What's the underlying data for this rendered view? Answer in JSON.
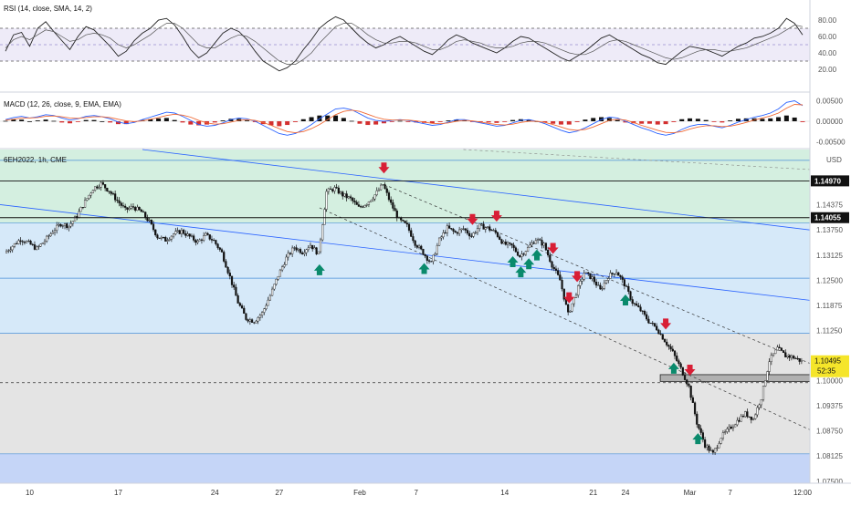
{
  "colors": {
    "green_zone": "#d4efe0",
    "blue_zone": "#d6e9f9",
    "gray_zone": "#e4e4e4",
    "blue_band": "#c5d5f7",
    "rsi_band": "#eeebf8",
    "trend_blue": "#2962ff",
    "arrow_down": "#d81e35",
    "arrow_up": "#0a8a6c",
    "macd_line": "#2962ff",
    "signal_line": "#f06a35",
    "price_tag": "#f5e52a"
  },
  "chart_data": [
    {
      "type": "line",
      "title": "RSI (14, close, SMA, 14, 2)",
      "ylim": [
        0,
        100
      ],
      "yticks": [
        "80.00",
        "60.00",
        "40.00",
        "20.00"
      ],
      "band": [
        30,
        70
      ],
      "midline": 50,
      "series": [
        {
          "name": "RSI",
          "values": [
            42,
            62,
            65,
            48,
            70,
            78,
            66,
            55,
            44,
            60,
            72,
            68,
            58,
            48,
            36,
            42,
            55,
            64,
            70,
            80,
            82,
            74,
            60,
            44,
            34,
            40,
            52,
            64,
            70,
            66,
            56,
            42,
            30,
            24,
            18,
            22,
            30,
            44,
            56,
            70,
            78,
            84,
            80,
            70,
            60,
            52,
            46,
            50,
            56,
            60,
            54,
            48,
            42,
            38,
            46,
            56,
            62,
            58,
            52,
            48,
            44,
            40,
            46,
            54,
            60,
            58,
            52,
            46,
            40,
            34,
            30,
            36,
            42,
            50,
            58,
            62,
            56,
            50,
            44,
            38,
            34,
            28,
            26,
            34,
            42,
            48,
            46,
            44,
            40,
            36,
            42,
            48,
            52,
            58,
            60,
            64,
            70,
            82,
            76,
            62
          ]
        },
        {
          "name": "RSI-based MA",
          "values": [
            46,
            56,
            60,
            56,
            62,
            68,
            66,
            60,
            54,
            56,
            62,
            64,
            62,
            58,
            50,
            46,
            50,
            56,
            62,
            70,
            76,
            76,
            70,
            60,
            50,
            46,
            46,
            52,
            58,
            62,
            60,
            54,
            46,
            38,
            30,
            26,
            26,
            32,
            40,
            52,
            62,
            72,
            76,
            76,
            70,
            62,
            56,
            52,
            52,
            54,
            54,
            52,
            48,
            44,
            44,
            48,
            54,
            56,
            54,
            52,
            48,
            46,
            46,
            48,
            52,
            54,
            54,
            52,
            48,
            44,
            40,
            38,
            38,
            42,
            48,
            54,
            56,
            54,
            50,
            46,
            42,
            38,
            34,
            32,
            34,
            38,
            42,
            44,
            44,
            42,
            42,
            44,
            46,
            50,
            54,
            58,
            62,
            68,
            74,
            72
          ]
        }
      ]
    },
    {
      "type": "line",
      "title": "MACD (12, 26, close, 9, EMA, EMA)",
      "ylim": [
        -0.006,
        0.006
      ],
      "yticks": [
        "0.00500",
        "0.00000",
        "-0.00500"
      ],
      "series": [
        {
          "name": "MACD",
          "values": [
            0.0004,
            0.0009,
            0.0012,
            0.0008,
            0.0011,
            0.0016,
            0.0014,
            0.0008,
            0.0003,
            0.0006,
            0.0012,
            0.0014,
            0.0011,
            0.0006,
            -0.0002,
            -0.0006,
            -0.0003,
            0.0004,
            0.001,
            0.0016,
            0.0022,
            0.002,
            0.0012,
            0.0002,
            -0.0008,
            -0.0012,
            -0.001,
            -0.0004,
            0.0004,
            0.0008,
            0.0006,
            0.0,
            -0.001,
            -0.002,
            -0.003,
            -0.0034,
            -0.003,
            -0.002,
            -0.0008,
            0.0006,
            0.0018,
            0.003,
            0.0032,
            0.0028,
            0.0018,
            0.0008,
            0.0002,
            0.0,
            0.0002,
            0.0004,
            0.0002,
            -0.0002,
            -0.0006,
            -0.001,
            -0.0008,
            -0.0002,
            0.0004,
            0.0004,
            0.0,
            -0.0004,
            -0.0008,
            -0.0012,
            -0.001,
            -0.0004,
            0.0002,
            0.0004,
            0.0,
            -0.0006,
            -0.0014,
            -0.0022,
            -0.0028,
            -0.0024,
            -0.0016,
            -0.0006,
            0.0004,
            0.001,
            0.0008,
            0.0,
            -0.0008,
            -0.0016,
            -0.0022,
            -0.003,
            -0.0034,
            -0.003,
            -0.002,
            -0.0012,
            -0.0008,
            -0.0008,
            -0.0012,
            -0.0016,
            -0.001,
            -0.0002,
            0.0004,
            0.001,
            0.0014,
            0.002,
            0.003,
            0.0046,
            0.005,
            0.0038
          ]
        },
        {
          "name": "Signal",
          "values": [
            0.0003,
            0.0005,
            0.0008,
            0.0008,
            0.0009,
            0.0012,
            0.0013,
            0.0011,
            0.0008,
            0.0007,
            0.0009,
            0.0011,
            0.0011,
            0.0009,
            0.0005,
            0.0001,
            -0.0001,
            0.0001,
            0.0005,
            0.0009,
            0.0014,
            0.0017,
            0.0015,
            0.001,
            0.0002,
            -0.0004,
            -0.0007,
            -0.0006,
            -0.0002,
            0.0002,
            0.0004,
            0.0002,
            -0.0003,
            -0.001,
            -0.0018,
            -0.0025,
            -0.0028,
            -0.0025,
            -0.0018,
            -0.0008,
            0.0004,
            0.0016,
            0.0024,
            0.0027,
            0.0024,
            0.0017,
            0.001,
            0.0005,
            0.0003,
            0.0003,
            0.0003,
            0.0001,
            -0.0002,
            -0.0005,
            -0.0006,
            -0.0004,
            0.0,
            0.0002,
            0.0001,
            -0.0002,
            -0.0005,
            -0.0008,
            -0.0009,
            -0.0007,
            -0.0003,
            0.0,
            0.0,
            -0.0003,
            -0.0008,
            -0.0014,
            -0.002,
            -0.0022,
            -0.002,
            -0.0014,
            -0.0006,
            0.0002,
            0.0005,
            0.0003,
            -0.0003,
            -0.001,
            -0.0016,
            -0.0022,
            -0.0027,
            -0.0028,
            -0.0025,
            -0.0019,
            -0.0014,
            -0.0011,
            -0.0011,
            -0.0013,
            -0.0012,
            -0.0008,
            -0.0003,
            0.0003,
            0.0008,
            0.0013,
            0.002,
            0.0032,
            0.0041,
            0.004
          ]
        }
      ]
    },
    {
      "type": "line",
      "title": "6EH2022, 1h, CME",
      "currency": "USD",
      "ylim": [
        1.0745,
        1.1575
      ],
      "yticks": [
        "1.14375",
        "1.13750",
        "1.13125",
        "1.12500",
        "1.11875",
        "1.11250",
        "1.10000",
        "1.09375",
        "1.08750",
        "1.08125",
        "1.07500"
      ],
      "x_ticks": [
        "10",
        "17",
        "24",
        "27",
        "Feb",
        "7",
        "14",
        "21",
        "24",
        "Mar",
        "7",
        "12:00"
      ],
      "levels": [
        {
          "value": 1.1497,
          "label": "1.14970"
        },
        {
          "value": 1.14055,
          "label": "1.14055"
        }
      ],
      "current_price": "1.10495",
      "countdown": "52:35",
      "series": [
        {
          "name": "6EH2022",
          "values": [
            1.1318,
            1.1335,
            1.1352,
            1.1342,
            1.1328,
            1.1348,
            1.1372,
            1.139,
            1.1385,
            1.141,
            1.1445,
            1.1478,
            1.149,
            1.1472,
            1.1448,
            1.1425,
            1.1432,
            1.142,
            1.1395,
            1.1358,
            1.135,
            1.1365,
            1.1372,
            1.1358,
            1.1345,
            1.1362,
            1.1348,
            1.1318,
            1.1258,
            1.1195,
            1.1155,
            1.1148,
            1.1168,
            1.1212,
            1.1262,
            1.1305,
            1.1332,
            1.132,
            1.1338,
            1.1315,
            1.147,
            1.1478,
            1.1462,
            1.1452,
            1.143,
            1.1442,
            1.1462,
            1.1488,
            1.144,
            1.14,
            1.1385,
            1.1342,
            1.1318,
            1.1292,
            1.135,
            1.138,
            1.1368,
            1.1378,
            1.136,
            1.1385,
            1.138,
            1.1368,
            1.134,
            1.1335,
            1.131,
            1.133,
            1.1352,
            1.1338,
            1.1288,
            1.125,
            1.1165,
            1.1218,
            1.1268,
            1.1255,
            1.1225,
            1.126,
            1.1272,
            1.124,
            1.1195,
            1.1175,
            1.1148,
            1.113,
            1.11,
            1.107,
            1.103,
            1.0985,
            1.0895,
            1.084,
            1.0818,
            1.086,
            1.088,
            1.09,
            1.0918,
            1.0905,
            1.0958,
            1.105,
            1.108,
            1.1062,
            1.1058,
            1.1048
          ]
        }
      ]
    }
  ],
  "overlay": {
    "arrows_down": [
      47,
      58,
      61,
      68,
      70,
      71,
      82,
      85
    ],
    "arrows_up": [
      39,
      52,
      63,
      64,
      65,
      66,
      77,
      83,
      86
    ],
    "zones": {
      "green": [
        1.1392,
        1.1575
      ],
      "blue": [
        1.1118,
        1.1392
      ],
      "gray": [
        1.0818,
        1.1118
      ],
      "blue_band": [
        1.0745,
        1.0818
      ]
    },
    "hlines": [
      1.1548,
      1.1392,
      1.1255,
      1.1118,
      1.0995,
      1.0818
    ],
    "box": [
      1.0998,
      1.1015
    ]
  }
}
